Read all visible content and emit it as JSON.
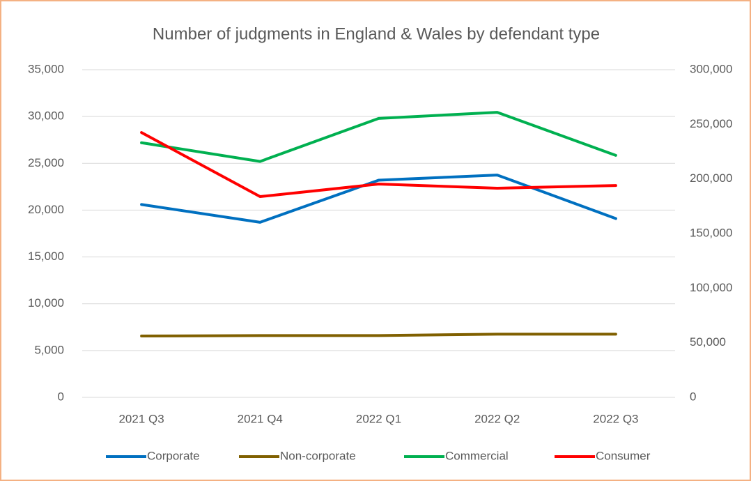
{
  "chart_data": {
    "type": "line",
    "title": "Number of judgments in England & Wales by defendant type",
    "categories": [
      "2021 Q3",
      "2021 Q4",
      "2022 Q1",
      "2022 Q2",
      "2022 Q3"
    ],
    "series": [
      {
        "name": "Corporate",
        "color": "#0070c0",
        "values": [
          20600,
          18700,
          23200,
          23750,
          19100
        ]
      },
      {
        "name": "Non-corporate",
        "color": "#806000",
        "values": [
          6550,
          6600,
          6600,
          6750,
          6750
        ]
      },
      {
        "name": "Commercial",
        "color": "#00b050",
        "values": [
          27200,
          25200,
          29800,
          30450,
          25850
        ]
      },
      {
        "name": "Consumer",
        "color": "#ff0000",
        "axis": "y2",
        "values": [
          242500,
          183800,
          195300,
          191500,
          194000
        ]
      }
    ],
    "ylim": [
      0,
      35000
    ],
    "yticks": [
      0,
      {
        "value": 5000,
        "label": "5,000"
      },
      {
        "value": 10000,
        "label": "10,000"
      },
      {
        "value": 15000,
        "label": "15,000"
      },
      {
        "value": 20000,
        "label": "20,000"
      },
      {
        "value": 25000,
        "label": "25,000"
      },
      {
        "value": 30000,
        "label": "30,000"
      },
      {
        "value": 35000,
        "label": "35,000"
      }
    ],
    "y2lim": [
      0,
      300000
    ],
    "y2ticks": [
      0,
      {
        "value": 50000,
        "label": "50,000"
      },
      {
        "value": 100000,
        "label": "100,000"
      },
      {
        "value": 150000,
        "label": "150,000"
      },
      {
        "value": 200000,
        "label": "200,000"
      },
      {
        "value": 250000,
        "label": "250,000"
      },
      {
        "value": 300000,
        "label": "300,000"
      }
    ],
    "grid": true,
    "legend": "bottom"
  }
}
